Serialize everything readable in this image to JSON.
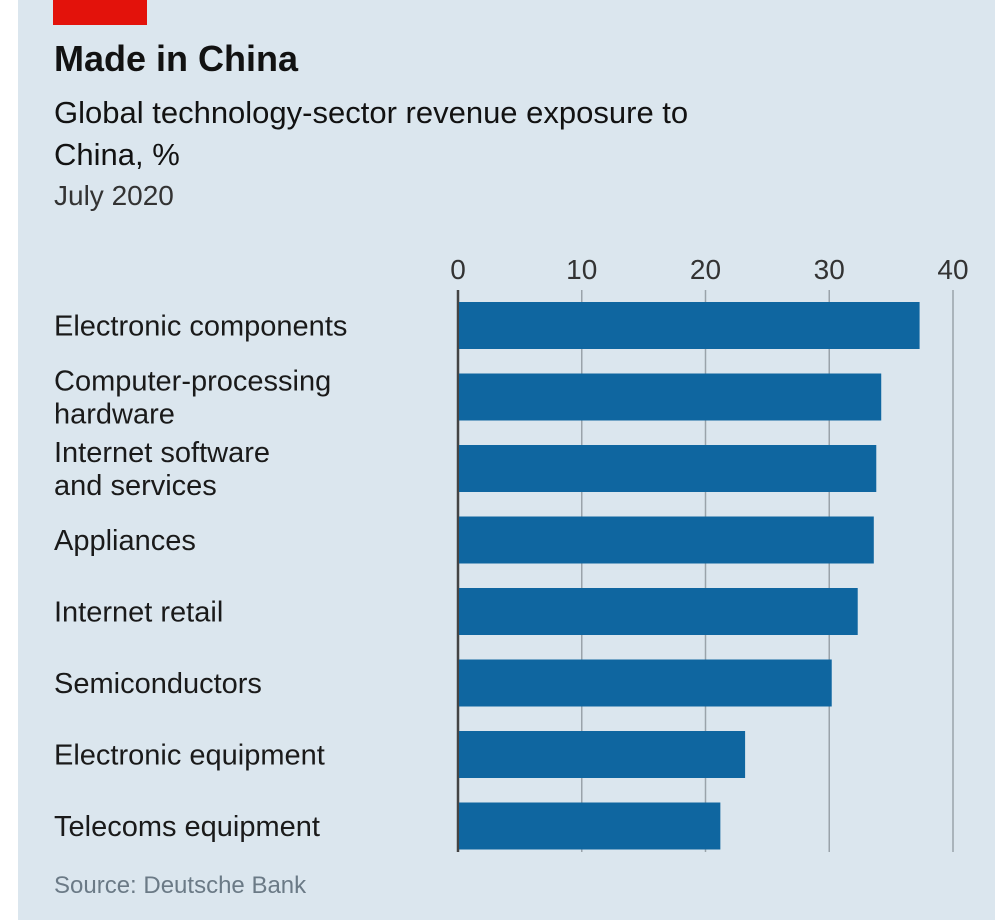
{
  "header": {
    "title": "Made in China",
    "subtitle": "Global technology-sector revenue exposure to China, %",
    "date": "July 2020"
  },
  "footer": {
    "source": "Source: Deutsche Bank"
  },
  "colors": {
    "bar": "#0f66a0",
    "accent": "#e3120b",
    "background": "#dbe6ee",
    "grid": "#9aa3aa"
  },
  "chart_data": {
    "type": "bar",
    "orientation": "horizontal",
    "categories": [
      [
        "Electronic components"
      ],
      [
        "Computer-processing",
        "hardware"
      ],
      [
        "Internet software",
        "and services"
      ],
      [
        "Appliances"
      ],
      [
        "Internet retail"
      ],
      [
        "Semiconductors"
      ],
      [
        "Electronic equipment"
      ],
      [
        "Telecoms equipment"
      ]
    ],
    "values": [
      37.3,
      34.2,
      33.8,
      33.6,
      32.3,
      30.2,
      23.2,
      21.2
    ],
    "xlim": [
      0,
      40
    ],
    "xticks": [
      "0",
      "10",
      "20",
      "30",
      "40"
    ],
    "tick_positions": [
      0,
      10,
      20,
      30,
      40
    ],
    "axis_position": "top",
    "grid": true
  }
}
